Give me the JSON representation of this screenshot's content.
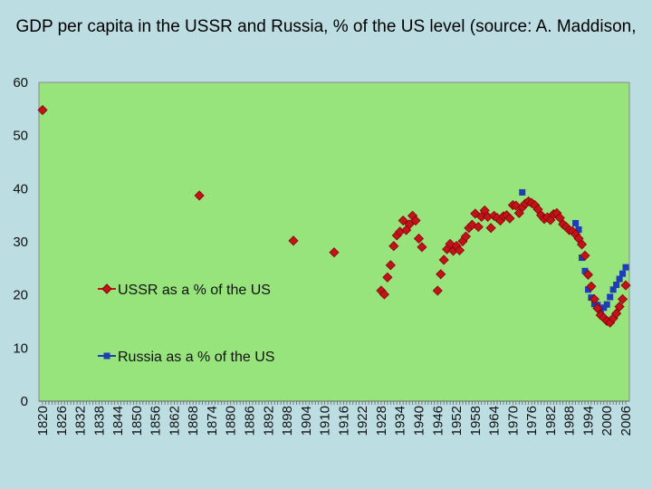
{
  "chart_data": {
    "type": "scatter",
    "title": "GDP  per capita in the USSR and Russia, % of the US level (source: A. Maddison,",
    "xlabel": "",
    "ylabel": "",
    "ylim": [
      0,
      60
    ],
    "yticks": [
      0,
      10,
      20,
      30,
      40,
      50,
      60
    ],
    "xlim": [
      1820,
      2006
    ],
    "xticks": [
      1820,
      1826,
      1832,
      1838,
      1844,
      1850,
      1856,
      1862,
      1868,
      1874,
      1880,
      1886,
      1892,
      1898,
      1904,
      1910,
      1916,
      1922,
      1928,
      1934,
      1940,
      1946,
      1952,
      1958,
      1964,
      1970,
      1976,
      1982,
      1988,
      1994,
      2000,
      2006
    ],
    "plot_background": "#97e37c",
    "series": [
      {
        "name": "USSR as a % of the US",
        "color": "#c0141c",
        "edge": "#8a0000",
        "marker": "diamond",
        "x": [
          1820,
          1870,
          1900,
          1913,
          1928,
          1929,
          1930,
          1931,
          1932,
          1933,
          1934,
          1935,
          1936,
          1937,
          1938,
          1939,
          1940,
          1941,
          1946,
          1947,
          1948,
          1949,
          1950,
          1951,
          1952,
          1953,
          1954,
          1955,
          1956,
          1957,
          1958,
          1959,
          1960,
          1961,
          1962,
          1963,
          1964,
          1965,
          1966,
          1967,
          1968,
          1969,
          1970,
          1971,
          1972,
          1973,
          1974,
          1975,
          1976,
          1977,
          1978,
          1979,
          1980,
          1981,
          1982,
          1983,
          1984,
          1985,
          1986,
          1987,
          1988,
          1989,
          1990,
          1991,
          1992,
          1993,
          1994,
          1995,
          1996,
          1997,
          1998,
          1999,
          2000,
          2001,
          2002,
          2003,
          2004,
          2005,
          2006
        ],
        "y": [
          54.8,
          38.7,
          30.2,
          28.0,
          20.8,
          20.1,
          23.3,
          25.6,
          29.2,
          31.2,
          31.9,
          34.0,
          32.2,
          33.3,
          34.9,
          34.0,
          30.6,
          29.0,
          20.8,
          23.9,
          26.6,
          28.6,
          29.6,
          28.3,
          29.2,
          28.4,
          30.1,
          31.0,
          32.6,
          33.2,
          35.3,
          32.8,
          34.7,
          35.9,
          34.7,
          32.6,
          34.9,
          34.5,
          34.0,
          34.8,
          35.0,
          34.4,
          36.9,
          36.8,
          35.4,
          36.5,
          37.2,
          37.6,
          37.3,
          36.9,
          36.1,
          35.0,
          34.3,
          34.6,
          34.1,
          35.2,
          35.4,
          34.5,
          33.3,
          32.8,
          32.2,
          32.0,
          31.4,
          30.6,
          29.5,
          27.4,
          23.8,
          21.6,
          19.2,
          17.5,
          16.2,
          15.7,
          15.1,
          14.8,
          15.6,
          16.5,
          17.8,
          19.2,
          21.8
        ]
      },
      {
        "name": "Russia as a % of the US",
        "color": "#1f3db4",
        "marker": "square",
        "x": [
          1973,
          1990,
          1991,
          1992,
          1993,
          1994,
          1995,
          1996,
          1997,
          1998,
          1999,
          2000,
          2001,
          2002,
          2003,
          2004,
          2005,
          2006
        ],
        "y": [
          39.3,
          33.5,
          32.3,
          27.0,
          24.5,
          21.0,
          19.5,
          18.3,
          18.1,
          16.7,
          17.6,
          18.2,
          19.6,
          21.0,
          21.9,
          23.0,
          24.0,
          25.2
        ]
      }
    ]
  }
}
